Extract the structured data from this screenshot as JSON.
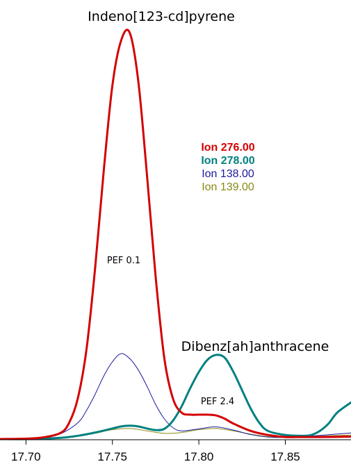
{
  "chart_data": {
    "type": "line",
    "title": "",
    "xlabel": "",
    "ylabel": "",
    "xlim": [
      17.685,
      17.888
    ],
    "ylim": [
      0,
      100
    ],
    "x_ticks": [
      17.7,
      17.75,
      17.8,
      17.85
    ],
    "x_tick_labels": [
      "17.70",
      "17.75",
      "17.80",
      "17.85"
    ],
    "grid": false,
    "legend_position": "upper-right",
    "series": [
      {
        "name": "Ion 276.00",
        "color": "#d40000",
        "bold": true,
        "x": [
          17.685,
          17.7,
          17.71,
          17.72,
          17.725,
          17.73,
          17.735,
          17.74,
          17.745,
          17.75,
          17.755,
          17.76,
          17.765,
          17.77,
          17.775,
          17.78,
          17.785,
          17.79,
          17.795,
          17.8,
          17.805,
          17.81,
          17.815,
          17.82,
          17.83,
          17.84,
          17.85,
          17.86,
          17.87,
          17.888
        ],
        "y": [
          0,
          0.1,
          0.4,
          1.5,
          4,
          10,
          22,
          42,
          66,
          87,
          98,
          100,
          88,
          65,
          40,
          20,
          10,
          6.5,
          6.0,
          6.0,
          6.0,
          5.8,
          5.0,
          3.8,
          2.0,
          1.0,
          0.5,
          0.5,
          0.5,
          0.6
        ]
      },
      {
        "name": "Ion 278.00",
        "color": "#008080",
        "bold": true,
        "x": [
          17.685,
          17.7,
          17.72,
          17.73,
          17.74,
          17.75,
          17.755,
          17.76,
          17.765,
          17.77,
          17.775,
          17.78,
          17.785,
          17.79,
          17.795,
          17.8,
          17.805,
          17.81,
          17.815,
          17.82,
          17.825,
          17.83,
          17.835,
          17.84,
          17.85,
          17.86,
          17.865,
          17.87,
          17.875,
          17.88,
          17.888
        ],
        "y": [
          0,
          0,
          0.3,
          0.8,
          1.6,
          2.6,
          3.1,
          3.3,
          3.1,
          2.6,
          2.2,
          2.5,
          4.5,
          8.0,
          12.5,
          16.5,
          19.5,
          20.7,
          20.0,
          16.5,
          12.0,
          7.5,
          4.0,
          2.0,
          1.0,
          0.8,
          1.0,
          2.0,
          3.8,
          6.5,
          9.0
        ]
      },
      {
        "name": "Ion 138.00",
        "color": "#1a1a9e",
        "bold": false,
        "x": [
          17.685,
          17.7,
          17.71,
          17.72,
          17.73,
          17.735,
          17.74,
          17.745,
          17.75,
          17.755,
          17.76,
          17.765,
          17.77,
          17.775,
          17.78,
          17.785,
          17.79,
          17.8,
          17.81,
          17.82,
          17.83,
          17.84,
          17.85,
          17.86,
          17.87,
          17.888
        ],
        "y": [
          0,
          0.1,
          0.5,
          1.3,
          4.0,
          7.0,
          11.0,
          15.5,
          19.0,
          21.0,
          19.8,
          17.0,
          13.0,
          8.5,
          5.0,
          2.8,
          2.0,
          2.5,
          3.0,
          2.2,
          1.1,
          0.5,
          0.4,
          0.6,
          0.9,
          1.5
        ]
      },
      {
        "name": "Ion 139.00",
        "color": "#8a8a14",
        "bold": false,
        "x": [
          17.685,
          17.7,
          17.72,
          17.73,
          17.74,
          17.75,
          17.76,
          17.77,
          17.78,
          17.79,
          17.8,
          17.81,
          17.82,
          17.83,
          17.84,
          17.85,
          17.86,
          17.87,
          17.888
        ],
        "y": [
          0,
          0,
          0.3,
          0.7,
          1.4,
          2.3,
          2.6,
          2.0,
          1.4,
          1.6,
          2.3,
          2.6,
          2.0,
          1.2,
          0.6,
          0.4,
          0.4,
          0.7,
          1.0
        ]
      }
    ],
    "annotations": [
      {
        "text": "Indeno[123-cd]pyrene"
      },
      {
        "text": "PEF 0.1"
      },
      {
        "text": "Dibenz[ah]anthracene"
      },
      {
        "text": "PEF 2.4"
      }
    ]
  }
}
